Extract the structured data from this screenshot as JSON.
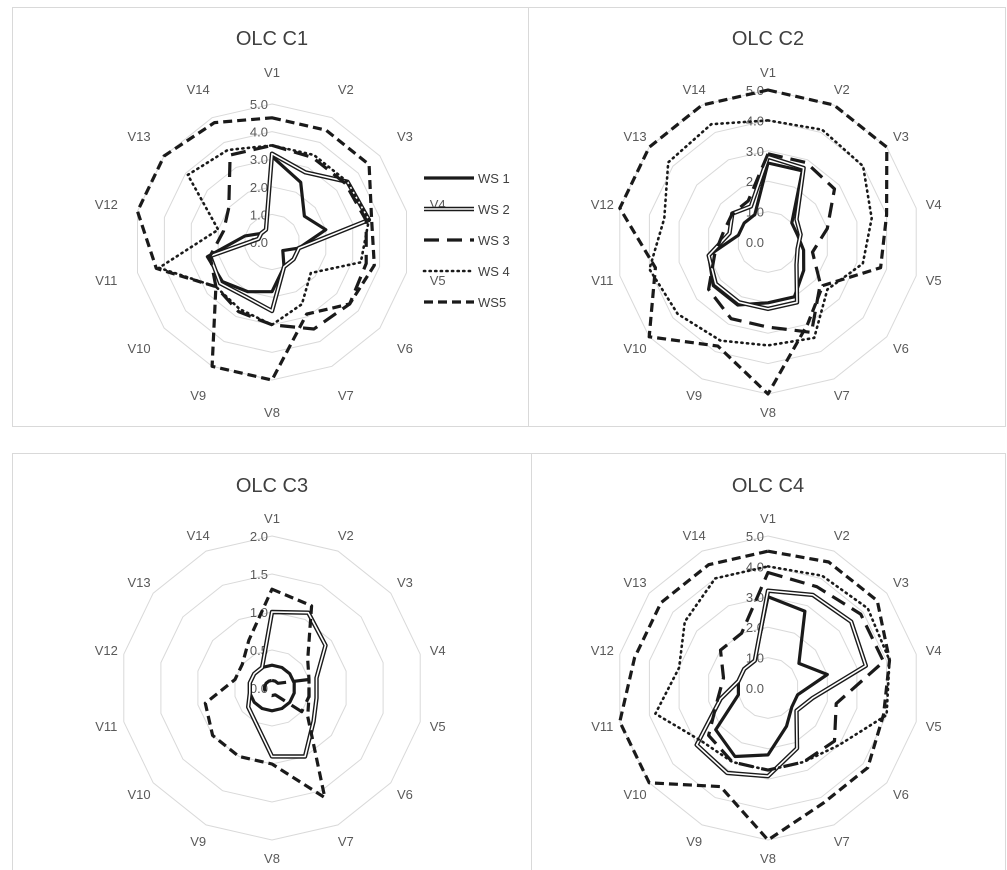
{
  "series_styles": {
    "WS 1": {
      "style": "solid",
      "color": "#1a1a1a"
    },
    "WS 2": {
      "style": "double",
      "color": "#1a1a1a"
    },
    "WS 3": {
      "style": "long-dash",
      "color": "#1a1a1a"
    },
    "WS 4": {
      "style": "dotted",
      "color": "#1a1a1a"
    },
    "WS5": {
      "style": "dash",
      "color": "#1a1a1a"
    }
  },
  "chart_data": [
    {
      "type": "radar",
      "title": "OLC C1",
      "categories": [
        "V1",
        "V2",
        "V3",
        "V4",
        "V5",
        "V6",
        "V7",
        "V8",
        "V9",
        "V10",
        "V11",
        "V12",
        "V13",
        "V14"
      ],
      "rmax": 5.0,
      "ticks": [
        "0.0",
        "1.0",
        "2.0",
        "3.0",
        "4.0",
        "5.0"
      ],
      "legend": "right",
      "series": [
        {
          "name": "WS 1",
          "values": [
            3.1,
            2.4,
            1.5,
            2.0,
            1.0,
            0.5,
            1.0,
            1.8,
            2.0,
            2.3,
            2.4,
            1.0,
            0.5,
            0.5
          ]
        },
        {
          "name": "WS 2",
          "values": [
            3.2,
            2.8,
            3.5,
            3.6,
            1.0,
            1.0,
            1.0,
            2.5,
            2.2,
            2.4,
            2.3,
            0.5,
            0.5,
            0.5
          ]
        },
        {
          "name": "WS 3",
          "values": [
            3.5,
            3.4,
            3.4,
            3.5,
            3.5,
            3.6,
            3.5,
            3.0,
            2.8,
            2.6,
            2.3,
            1.8,
            2.0,
            3.5
          ]
        },
        {
          "name": "WS 4",
          "values": [
            3.5,
            3.5,
            3.5,
            3.6,
            3.3,
            1.8,
            2.5,
            3.0,
            2.7,
            2.6,
            4.2,
            2.0,
            3.9,
            3.7
          ]
        },
        {
          "name": "WS5",
          "values": [
            4.5,
            4.5,
            4.5,
            3.7,
            3.8,
            3.6,
            2.9,
            5.0,
            5.0,
            2.6,
            4.3,
            5.0,
            5.0,
            4.8
          ]
        }
      ]
    },
    {
      "type": "radar",
      "title": "OLC C2",
      "categories": [
        "V1",
        "V2",
        "V3",
        "V4",
        "V5",
        "V6",
        "V7",
        "V8",
        "V9",
        "V10",
        "V11",
        "V12",
        "V13",
        "V14"
      ],
      "rmax": 5.0,
      "ticks": [
        "0.0",
        "1.0",
        "2.0",
        "3.0",
        "4.0",
        "5.0"
      ],
      "series": [
        {
          "name": "WS 1",
          "values": [
            2.6,
            2.6,
            1.0,
            1.0,
            1.2,
            1.5,
            2.0,
            2.0,
            2.3,
            2.3,
            2.0,
            1.0,
            1.0,
            1.0
          ]
        },
        {
          "name": "WS 2",
          "values": [
            2.8,
            2.7,
            1.2,
            1.1,
            1.0,
            1.2,
            2.2,
            2.2,
            2.2,
            2.2,
            2.0,
            1.3,
            1.5,
            1.3
          ]
        },
        {
          "name": "WS 3",
          "values": [
            2.9,
            2.9,
            2.8,
            2.0,
            1.5,
            2.2,
            3.3,
            2.8,
            2.8,
            2.5,
            1.8,
            1.5,
            1.5,
            1.5
          ]
        },
        {
          "name": "WS 4",
          "values": [
            4.0,
            4.1,
            4.0,
            3.5,
            3.2,
            2.5,
            3.5,
            3.4,
            3.6,
            3.8,
            4.0,
            3.5,
            4.2,
            4.3
          ]
        },
        {
          "name": "WS5",
          "values": [
            5.0,
            5.0,
            5.0,
            4.0,
            3.8,
            2.3,
            3.0,
            5.0,
            3.8,
            5.0,
            3.8,
            5.0,
            5.0,
            5.0
          ]
        }
      ]
    },
    {
      "type": "radar",
      "title": "OLC C3",
      "categories": [
        "V1",
        "V2",
        "V3",
        "V4",
        "V5",
        "V6",
        "V7",
        "V8",
        "V9",
        "V10",
        "V11",
        "V12",
        "V13",
        "V14"
      ],
      "rmax": 2.0,
      "ticks": [
        "0.0",
        "0.5",
        "1.0",
        "1.5",
        "2.0"
      ],
      "series": [
        {
          "name": "WS 1",
          "values": [
            0.3,
            0.3,
            0.3,
            0.3,
            0.3,
            0.3,
            0.3,
            0.3,
            0.3,
            0.3,
            0.3,
            0.3,
            0.3,
            0.3
          ]
        },
        {
          "name": "WS 2",
          "values": [
            1.0,
            1.1,
            0.9,
            0.6,
            0.6,
            0.7,
            1.0,
            0.9,
            0.5,
            0.4,
            0.3,
            0.3,
            0.3,
            0.3
          ]
        },
        {
          "name": "WS 3",
          "values": [
            0.1,
            0.1,
            0.1,
            0.5,
            0.5,
            0.5,
            0.1,
            0.1,
            0.1,
            0.1,
            0.1,
            0.1,
            0.1,
            0.1
          ]
        },
        {
          "name": "WS 4",
          "values": [
            0.0,
            0.0,
            0.0,
            0.0,
            0.0,
            0.0,
            0.0,
            0.0,
            0.0,
            0.0,
            0.0,
            0.0,
            0.0,
            0.0
          ]
        },
        {
          "name": "WS5",
          "values": [
            1.3,
            1.2,
            0.6,
            0.5,
            0.5,
            0.6,
            1.6,
            1.0,
            1.0,
            1.0,
            0.9,
            0.5,
            0.5,
            0.7
          ]
        }
      ]
    },
    {
      "type": "radar",
      "title": "OLC C4",
      "categories": [
        "V1",
        "V2",
        "V3",
        "V4",
        "V5",
        "V6",
        "V7",
        "V8",
        "V9",
        "V10",
        "V11",
        "V12",
        "V13",
        "V14"
      ],
      "rmax": 5.0,
      "ticks": [
        "0.0",
        "1.0",
        "2.0",
        "3.0",
        "4.0",
        "5.0"
      ],
      "series": [
        {
          "name": "WS 1",
          "values": [
            3.0,
            2.8,
            1.3,
            2.0,
            1.0,
            1.0,
            1.4,
            2.2,
            2.5,
            2.2,
            1.0,
            1.0,
            1.0,
            1.0
          ]
        },
        {
          "name": "WS 2",
          "values": [
            3.2,
            3.4,
            3.5,
            3.3,
            1.5,
            1.2,
            2.2,
            2.9,
            3.1,
            3.0,
            1.6,
            1.0,
            1.0,
            1.0
          ]
        },
        {
          "name": "WS 3",
          "values": [
            3.8,
            3.7,
            3.9,
            3.9,
            2.3,
            2.8,
            2.7,
            2.7,
            2.7,
            2.5,
            1.7,
            1.5,
            2.0,
            2.0
          ]
        },
        {
          "name": "WS 4",
          "values": [
            4.0,
            4.1,
            4.2,
            4.1,
            4.0,
            3.0,
            2.7,
            2.7,
            2.7,
            2.8,
            3.8,
            3.0,
            3.5,
            4.0
          ]
        },
        {
          "name": "WS5",
          "values": [
            4.5,
            4.6,
            4.6,
            4.1,
            3.9,
            4.2,
            4.2,
            5.0,
            3.6,
            5.0,
            5.0,
            4.5,
            4.5,
            4.5
          ]
        }
      ]
    }
  ]
}
